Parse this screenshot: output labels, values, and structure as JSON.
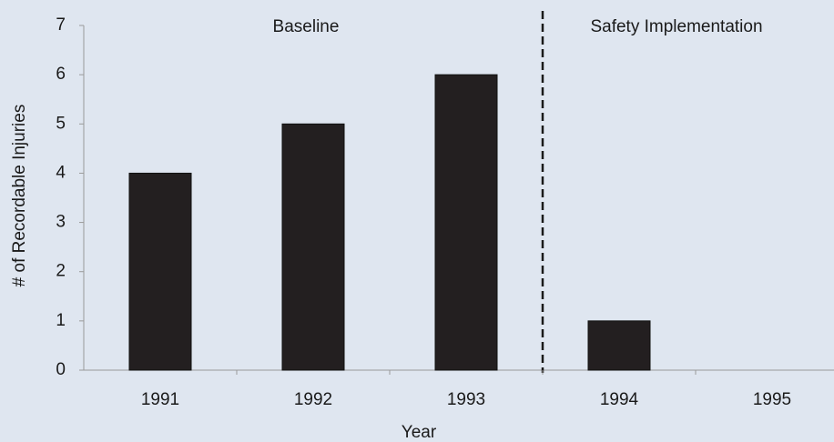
{
  "chart_data": {
    "type": "bar",
    "categories": [
      "1991",
      "1992",
      "1993",
      "1994",
      "1995"
    ],
    "values": [
      4,
      5,
      6,
      1,
      0
    ],
    "color": "#231f20",
    "ylim": [
      0,
      7
    ],
    "yticks": [
      0,
      1,
      2,
      3,
      4,
      5,
      6,
      7
    ],
    "x_label": "Year",
    "y_label": "# of Recordable Injuries",
    "annotations": [
      "Baseline",
      "Safety Implementation"
    ]
  }
}
